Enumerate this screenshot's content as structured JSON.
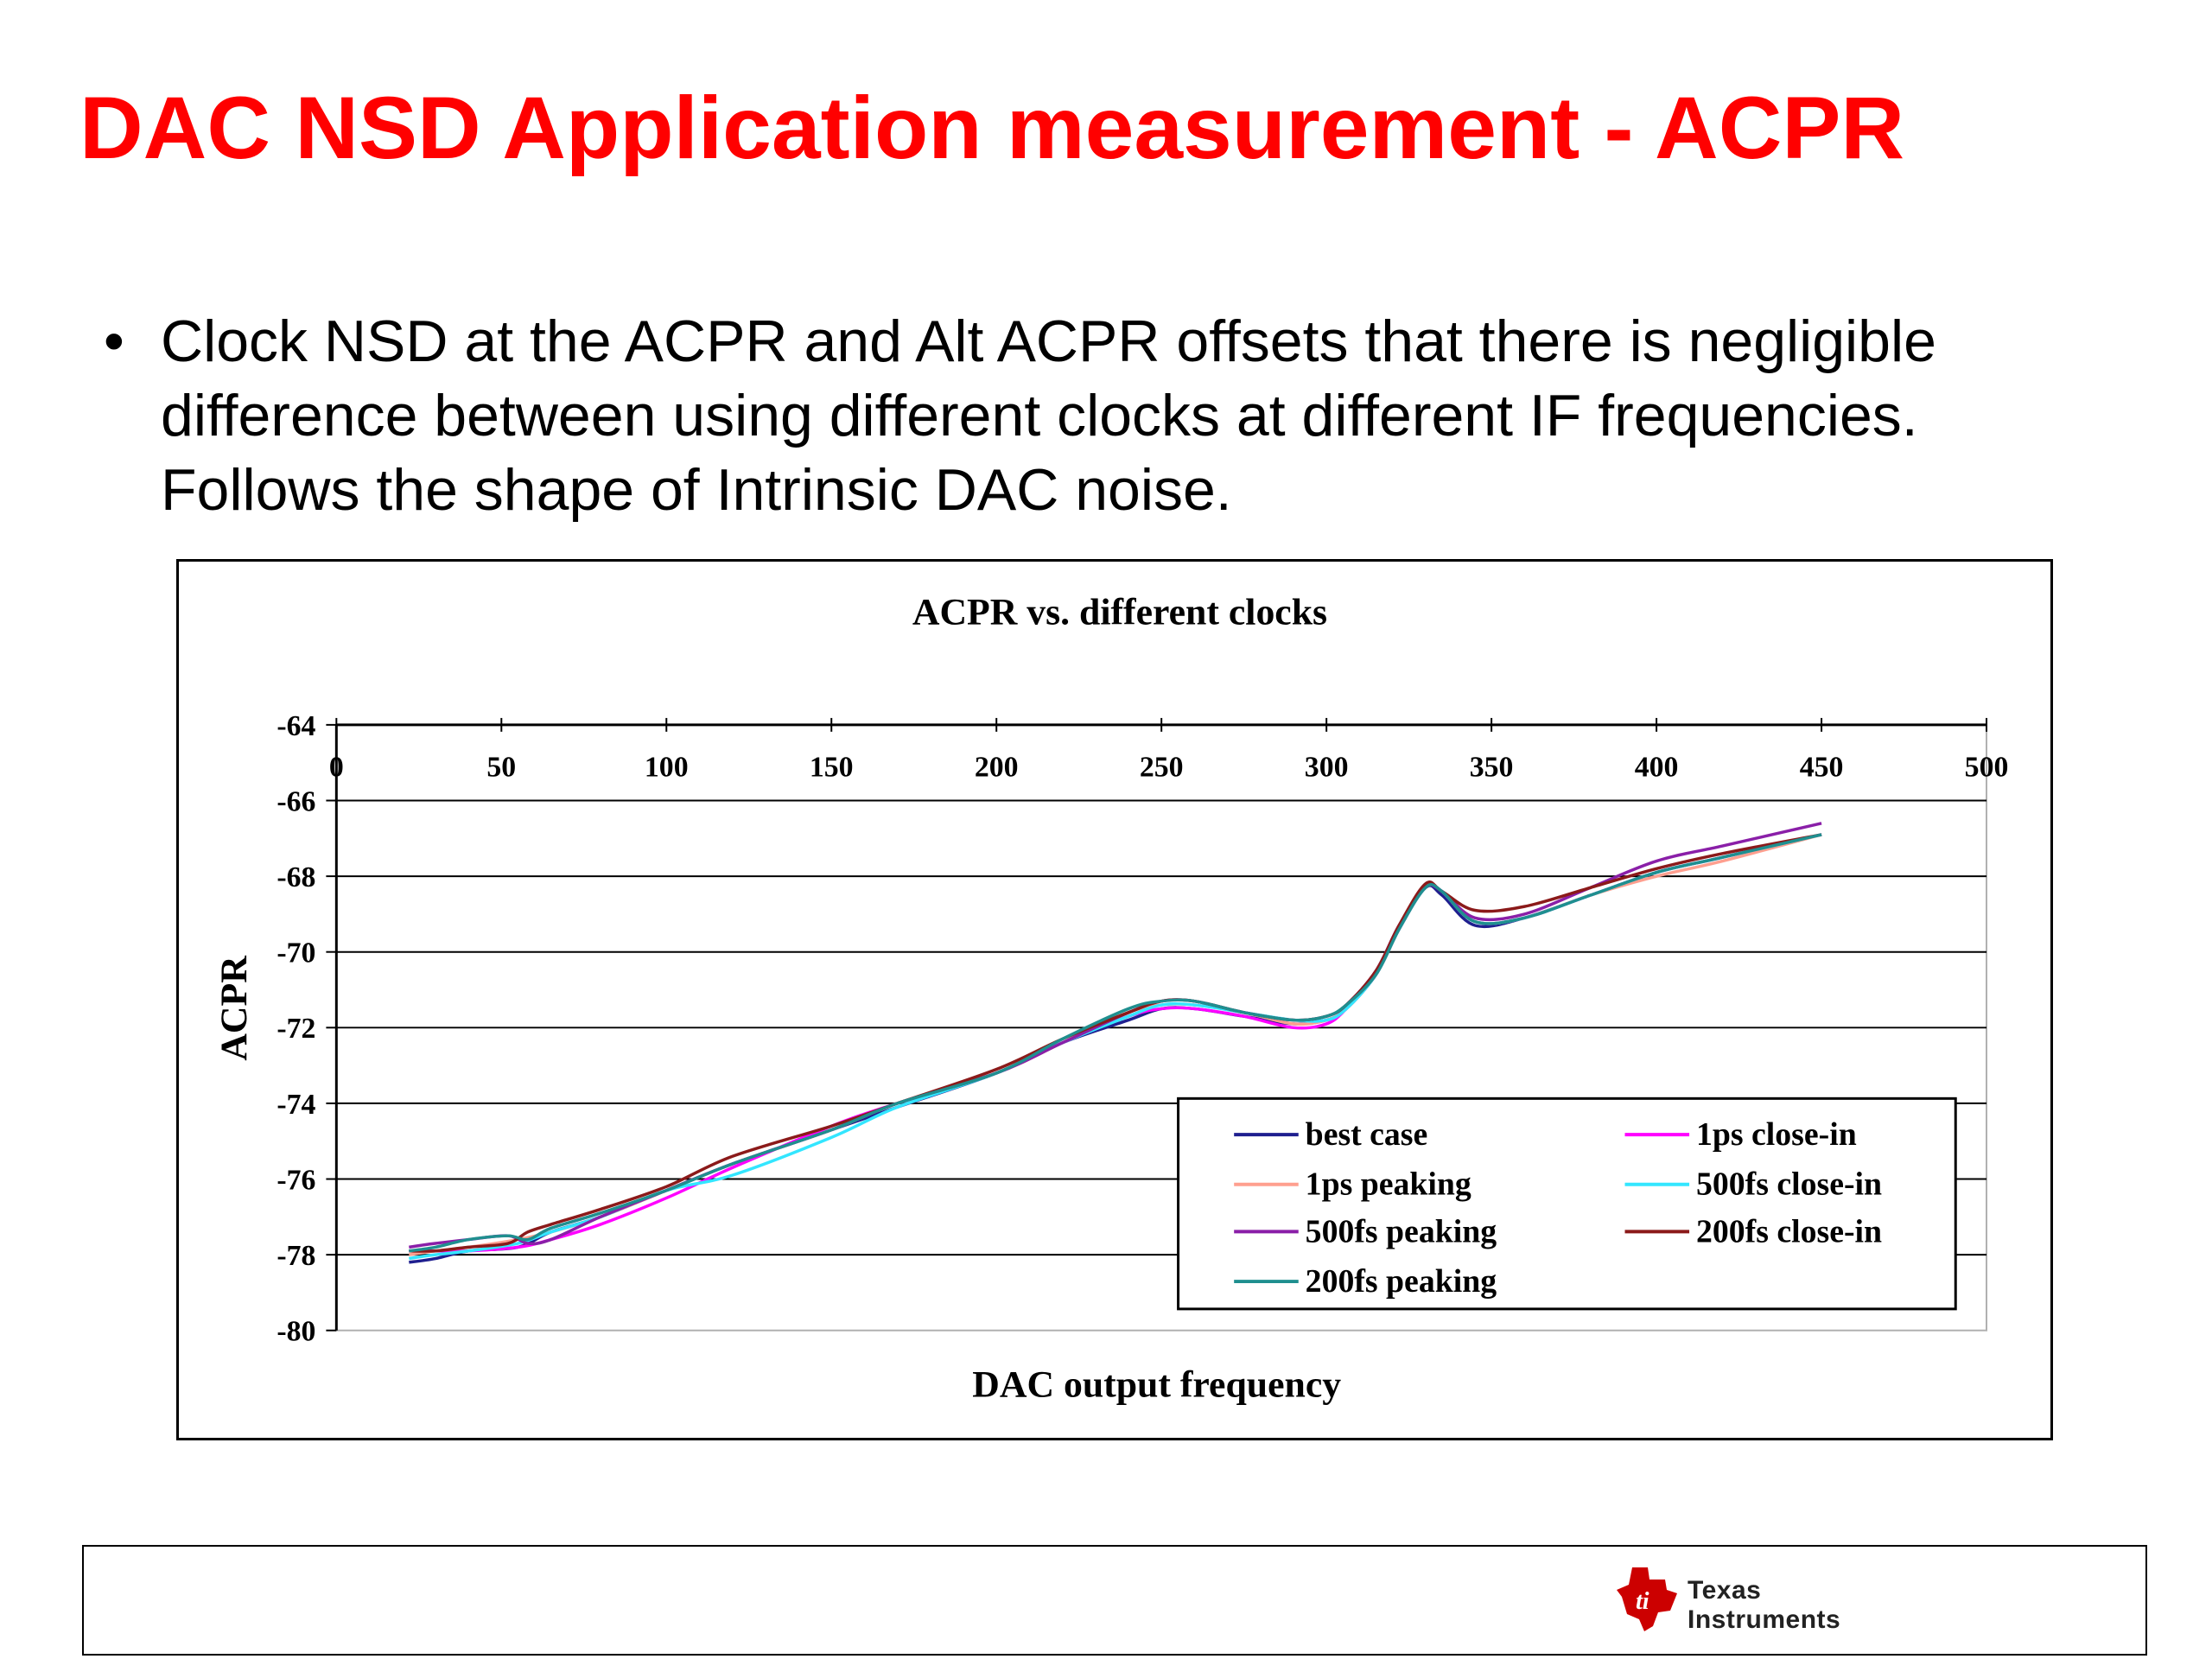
{
  "slide": {
    "title": "DAC NSD Application measurement - ACPR",
    "bullet_symbol": "•",
    "bullet_text": "Clock NSD at the ACPR and Alt ACPR offsets that there is negligible difference between using different clocks at different IF frequencies. Follows the shape of Intrinsic DAC noise."
  },
  "footer": {
    "logo_line1": "Texas",
    "logo_line2": "Instruments",
    "logo_color": "#cc0000"
  },
  "chart_data": {
    "type": "line",
    "title": "ACPR vs. different clocks",
    "xlabel": "DAC output frequency",
    "ylabel": "ACPR",
    "xlim": [
      0,
      500
    ],
    "ylim": [
      -80,
      -64
    ],
    "xticks": [
      0,
      50,
      100,
      150,
      200,
      250,
      300,
      350,
      400,
      450,
      500
    ],
    "yticks": [
      -64,
      -66,
      -68,
      -70,
      -72,
      -74,
      -76,
      -78,
      -80
    ],
    "x_axis_position": "top",
    "grid": "horizontal",
    "legend_position": "bottom-right",
    "series": [
      {
        "name": "best case",
        "color": "#1f1f8f",
        "points": [
          [
            22,
            -78.2
          ],
          [
            30,
            -78.1
          ],
          [
            40,
            -77.9
          ],
          [
            55,
            -77.8
          ],
          [
            65,
            -77.4
          ],
          [
            80,
            -77.0
          ],
          [
            100,
            -76.3
          ],
          [
            120,
            -75.6
          ],
          [
            150,
            -74.7
          ],
          [
            170,
            -74.1
          ],
          [
            200,
            -73.2
          ],
          [
            220,
            -72.4
          ],
          [
            240,
            -71.8
          ],
          [
            250,
            -71.5
          ],
          [
            260,
            -71.5
          ],
          [
            275,
            -71.7
          ],
          [
            290,
            -71.9
          ],
          [
            300,
            -71.8
          ],
          [
            306,
            -71.5
          ],
          [
            315,
            -70.6
          ],
          [
            322,
            -69.4
          ],
          [
            330,
            -68.3
          ],
          [
            335,
            -68.5
          ],
          [
            345,
            -69.3
          ],
          [
            360,
            -69.1
          ],
          [
            380,
            -68.5
          ],
          [
            400,
            -67.9
          ],
          [
            420,
            -67.5
          ],
          [
            450,
            -66.9
          ]
        ]
      },
      {
        "name": "1ps close-in",
        "color": "#ff00ff",
        "points": [
          [
            22,
            -77.9
          ],
          [
            30,
            -77.9
          ],
          [
            40,
            -77.9
          ],
          [
            55,
            -77.8
          ],
          [
            65,
            -77.6
          ],
          [
            80,
            -77.2
          ],
          [
            100,
            -76.5
          ],
          [
            120,
            -75.7
          ],
          [
            150,
            -74.6
          ],
          [
            170,
            -74.0
          ],
          [
            200,
            -73.2
          ],
          [
            220,
            -72.4
          ],
          [
            240,
            -71.7
          ],
          [
            250,
            -71.5
          ],
          [
            260,
            -71.5
          ],
          [
            275,
            -71.7
          ],
          [
            290,
            -72.0
          ],
          [
            300,
            -71.9
          ],
          [
            306,
            -71.5
          ],
          [
            315,
            -70.6
          ],
          [
            322,
            -69.4
          ],
          [
            330,
            -68.3
          ],
          [
            335,
            -68.4
          ],
          [
            345,
            -69.2
          ],
          [
            360,
            -69.1
          ],
          [
            380,
            -68.5
          ],
          [
            400,
            -67.9
          ],
          [
            420,
            -67.5
          ],
          [
            450,
            -66.9
          ]
        ]
      },
      {
        "name": "1ps peaking",
        "color": "#ff9f8f",
        "points": [
          [
            22,
            -78.0
          ],
          [
            30,
            -77.9
          ],
          [
            40,
            -77.8
          ],
          [
            55,
            -77.6
          ],
          [
            65,
            -77.4
          ],
          [
            80,
            -77.0
          ],
          [
            100,
            -76.3
          ],
          [
            120,
            -75.6
          ],
          [
            150,
            -74.7
          ],
          [
            170,
            -74.0
          ],
          [
            200,
            -73.2
          ],
          [
            220,
            -72.4
          ],
          [
            240,
            -71.6
          ],
          [
            250,
            -71.4
          ],
          [
            260,
            -71.4
          ],
          [
            275,
            -71.6
          ],
          [
            290,
            -71.9
          ],
          [
            300,
            -71.8
          ],
          [
            306,
            -71.5
          ],
          [
            315,
            -70.6
          ],
          [
            322,
            -69.4
          ],
          [
            330,
            -68.3
          ],
          [
            335,
            -68.4
          ],
          [
            345,
            -69.2
          ],
          [
            360,
            -69.1
          ],
          [
            380,
            -68.5
          ],
          [
            400,
            -68.0
          ],
          [
            420,
            -67.6
          ],
          [
            450,
            -66.9
          ]
        ]
      },
      {
        "name": "500fs close-in",
        "color": "#33e6ff",
        "points": [
          [
            22,
            -78.1
          ],
          [
            30,
            -78.0
          ],
          [
            40,
            -77.9
          ],
          [
            55,
            -77.7
          ],
          [
            65,
            -77.4
          ],
          [
            80,
            -77.0
          ],
          [
            100,
            -76.3
          ],
          [
            120,
            -75.9
          ],
          [
            150,
            -74.9
          ],
          [
            170,
            -74.1
          ],
          [
            200,
            -73.2
          ],
          [
            220,
            -72.4
          ],
          [
            240,
            -71.7
          ],
          [
            250,
            -71.4
          ],
          [
            260,
            -71.4
          ],
          [
            275,
            -71.6
          ],
          [
            290,
            -71.8
          ],
          [
            300,
            -71.8
          ],
          [
            306,
            -71.5
          ],
          [
            315,
            -70.6
          ],
          [
            322,
            -69.4
          ],
          [
            330,
            -68.3
          ],
          [
            335,
            -68.4
          ],
          [
            345,
            -69.2
          ],
          [
            360,
            -69.1
          ],
          [
            380,
            -68.5
          ],
          [
            400,
            -67.9
          ],
          [
            420,
            -67.5
          ],
          [
            450,
            -66.9
          ]
        ]
      },
      {
        "name": "500fs peaking",
        "color": "#8a1fa8",
        "points": [
          [
            22,
            -77.8
          ],
          [
            30,
            -77.7
          ],
          [
            40,
            -77.6
          ],
          [
            52,
            -77.5
          ],
          [
            58,
            -77.7
          ],
          [
            65,
            -77.6
          ],
          [
            80,
            -77.0
          ],
          [
            100,
            -76.3
          ],
          [
            120,
            -75.6
          ],
          [
            150,
            -74.7
          ],
          [
            170,
            -74.0
          ],
          [
            200,
            -73.2
          ],
          [
            220,
            -72.4
          ],
          [
            240,
            -71.6
          ],
          [
            250,
            -71.3
          ],
          [
            260,
            -71.3
          ],
          [
            275,
            -71.6
          ],
          [
            290,
            -71.8
          ],
          [
            300,
            -71.7
          ],
          [
            306,
            -71.4
          ],
          [
            315,
            -70.5
          ],
          [
            322,
            -69.3
          ],
          [
            330,
            -68.3
          ],
          [
            335,
            -68.4
          ],
          [
            345,
            -69.1
          ],
          [
            360,
            -69.0
          ],
          [
            380,
            -68.3
          ],
          [
            400,
            -67.6
          ],
          [
            420,
            -67.2
          ],
          [
            450,
            -66.6
          ]
        ]
      },
      {
        "name": "200fs close-in",
        "color": "#8b1a1a",
        "points": [
          [
            22,
            -77.9
          ],
          [
            30,
            -77.9
          ],
          [
            40,
            -77.8
          ],
          [
            52,
            -77.7
          ],
          [
            58,
            -77.4
          ],
          [
            65,
            -77.2
          ],
          [
            80,
            -76.8
          ],
          [
            100,
            -76.2
          ],
          [
            120,
            -75.4
          ],
          [
            150,
            -74.6
          ],
          [
            170,
            -74.0
          ],
          [
            200,
            -73.1
          ],
          [
            220,
            -72.3
          ],
          [
            240,
            -71.6
          ],
          [
            250,
            -71.3
          ],
          [
            260,
            -71.3
          ],
          [
            275,
            -71.6
          ],
          [
            290,
            -71.8
          ],
          [
            300,
            -71.7
          ],
          [
            306,
            -71.4
          ],
          [
            315,
            -70.5
          ],
          [
            322,
            -69.3
          ],
          [
            330,
            -68.2
          ],
          [
            335,
            -68.4
          ],
          [
            345,
            -68.9
          ],
          [
            360,
            -68.8
          ],
          [
            380,
            -68.3
          ],
          [
            400,
            -67.8
          ],
          [
            420,
            -67.4
          ],
          [
            450,
            -66.9
          ]
        ]
      },
      {
        "name": "200fs peaking",
        "color": "#1f8f8f",
        "points": [
          [
            22,
            -77.9
          ],
          [
            30,
            -77.8
          ],
          [
            40,
            -77.6
          ],
          [
            52,
            -77.5
          ],
          [
            58,
            -77.6
          ],
          [
            65,
            -77.3
          ],
          [
            80,
            -76.9
          ],
          [
            100,
            -76.3
          ],
          [
            120,
            -75.6
          ],
          [
            150,
            -74.7
          ],
          [
            170,
            -74.0
          ],
          [
            200,
            -73.2
          ],
          [
            220,
            -72.3
          ],
          [
            240,
            -71.5
          ],
          [
            250,
            -71.3
          ],
          [
            260,
            -71.3
          ],
          [
            275,
            -71.6
          ],
          [
            290,
            -71.8
          ],
          [
            300,
            -71.7
          ],
          [
            306,
            -71.4
          ],
          [
            315,
            -70.6
          ],
          [
            322,
            -69.4
          ],
          [
            330,
            -68.3
          ],
          [
            335,
            -68.4
          ],
          [
            345,
            -69.2
          ],
          [
            360,
            -69.1
          ],
          [
            380,
            -68.5
          ],
          [
            400,
            -67.9
          ],
          [
            420,
            -67.5
          ],
          [
            450,
            -66.9
          ]
        ]
      }
    ]
  }
}
